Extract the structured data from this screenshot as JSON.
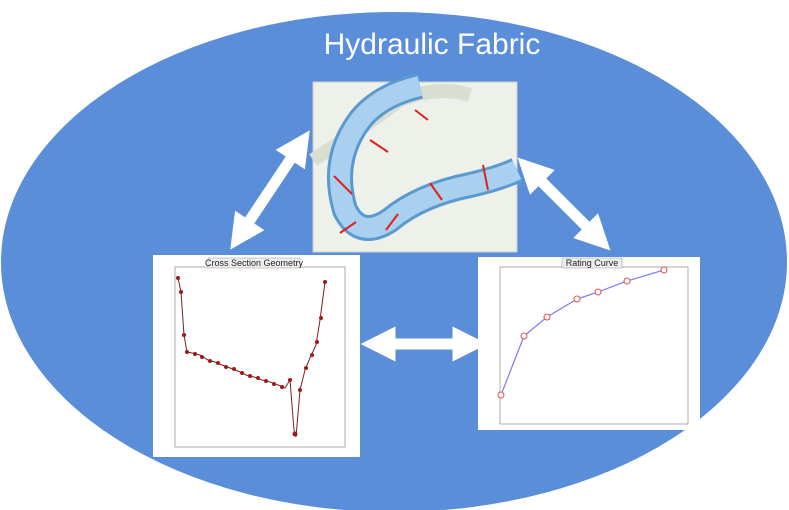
{
  "title": "Hydraulic Fabric",
  "panels": {
    "cross_section": {
      "title": "Cross Section Geometry"
    },
    "rating_curve": {
      "title": "Rating Curve"
    }
  }
}
